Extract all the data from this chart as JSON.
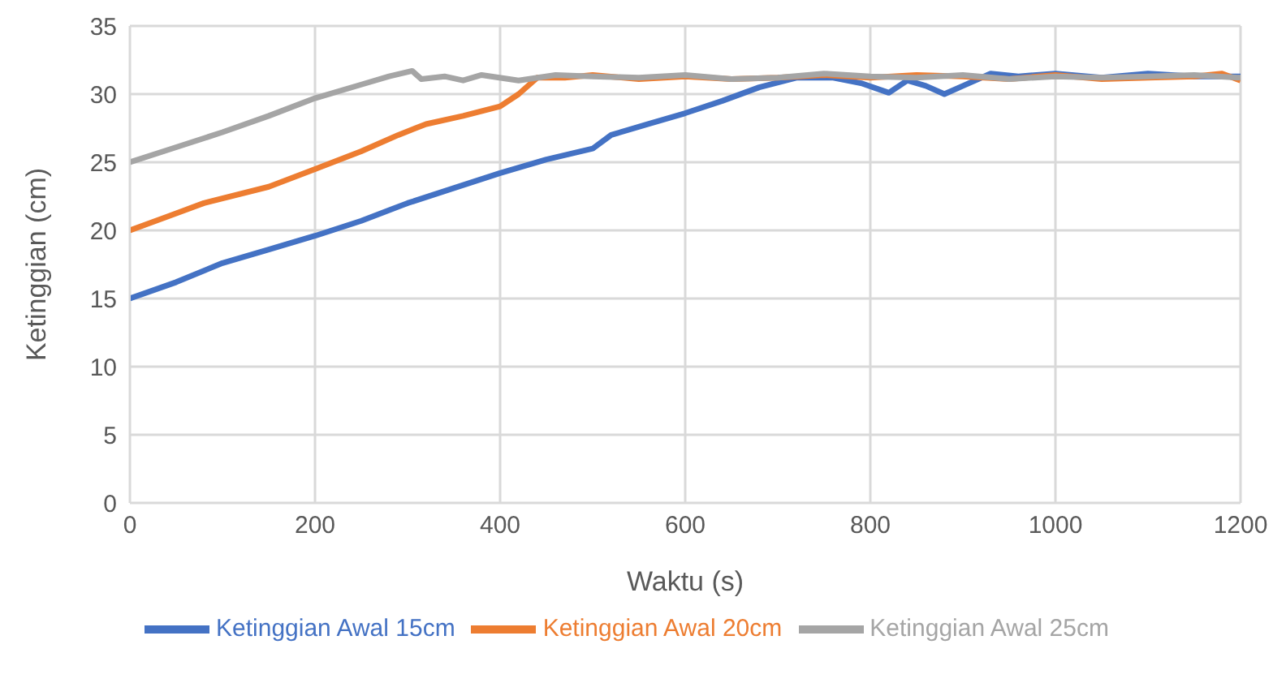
{
  "chart_data": {
    "type": "line",
    "xlabel": "Waktu (s)",
    "ylabel": "Ketinggian (cm)",
    "xlim": [
      0,
      1200
    ],
    "xticks": [
      0,
      200,
      400,
      600,
      800,
      1000,
      1200
    ],
    "ylim": [
      0,
      35
    ],
    "yticks": [
      0,
      5,
      10,
      15,
      20,
      25,
      30,
      35
    ],
    "grid": true,
    "legend": "bottom",
    "marker": "none",
    "line_style": "solid",
    "series": [
      {
        "name": "Ketinggian Awal 15cm",
        "color": "#4472c4",
        "x": [
          0,
          50,
          100,
          150,
          200,
          250,
          300,
          350,
          400,
          450,
          500,
          520,
          560,
          600,
          640,
          680,
          720,
          760,
          790,
          820,
          840,
          860,
          880,
          900,
          930,
          960,
          1000,
          1050,
          1100,
          1150,
          1200
        ],
        "values": [
          15,
          16.2,
          17.6,
          18.6,
          19.6,
          20.7,
          22,
          23.1,
          24.2,
          25.2,
          26,
          27,
          27.8,
          28.6,
          29.5,
          30.5,
          31.2,
          31.2,
          30.8,
          30.1,
          31,
          30.6,
          30,
          30.6,
          31.5,
          31.3,
          31.5,
          31.2,
          31.5,
          31.3,
          31.3
        ]
      },
      {
        "name": "Ketinggian Awal 20cm",
        "color": "#ed7d31",
        "x": [
          0,
          40,
          80,
          150,
          200,
          250,
          290,
          320,
          360,
          400,
          420,
          440,
          470,
          500,
          550,
          600,
          650,
          700,
          750,
          800,
          850,
          900,
          950,
          1000,
          1050,
          1100,
          1150,
          1180,
          1200
        ],
        "values": [
          20,
          21,
          22,
          23.2,
          24.5,
          25.8,
          27,
          27.8,
          28.4,
          29.1,
          30,
          31.2,
          31.2,
          31.4,
          31.1,
          31.3,
          31.1,
          31.2,
          31.4,
          31.2,
          31.4,
          31.3,
          31.1,
          31.4,
          31.1,
          31.2,
          31.3,
          31.5,
          31
        ]
      },
      {
        "name": "Ketinggian Awal 25cm",
        "color": "#a5a5a5",
        "x": [
          0,
          50,
          100,
          150,
          200,
          250,
          280,
          305,
          315,
          340,
          360,
          380,
          420,
          460,
          500,
          550,
          600,
          650,
          700,
          750,
          800,
          850,
          900,
          950,
          1000,
          1050,
          1100,
          1150,
          1200
        ],
        "values": [
          25,
          26.1,
          27.2,
          28.4,
          29.7,
          30.7,
          31.3,
          31.7,
          31.1,
          31.3,
          31,
          31.4,
          31,
          31.4,
          31.3,
          31.2,
          31.4,
          31.1,
          31.2,
          31.5,
          31.3,
          31.2,
          31.4,
          31.1,
          31.3,
          31.2,
          31.3,
          31.4,
          31.2
        ]
      }
    ]
  }
}
